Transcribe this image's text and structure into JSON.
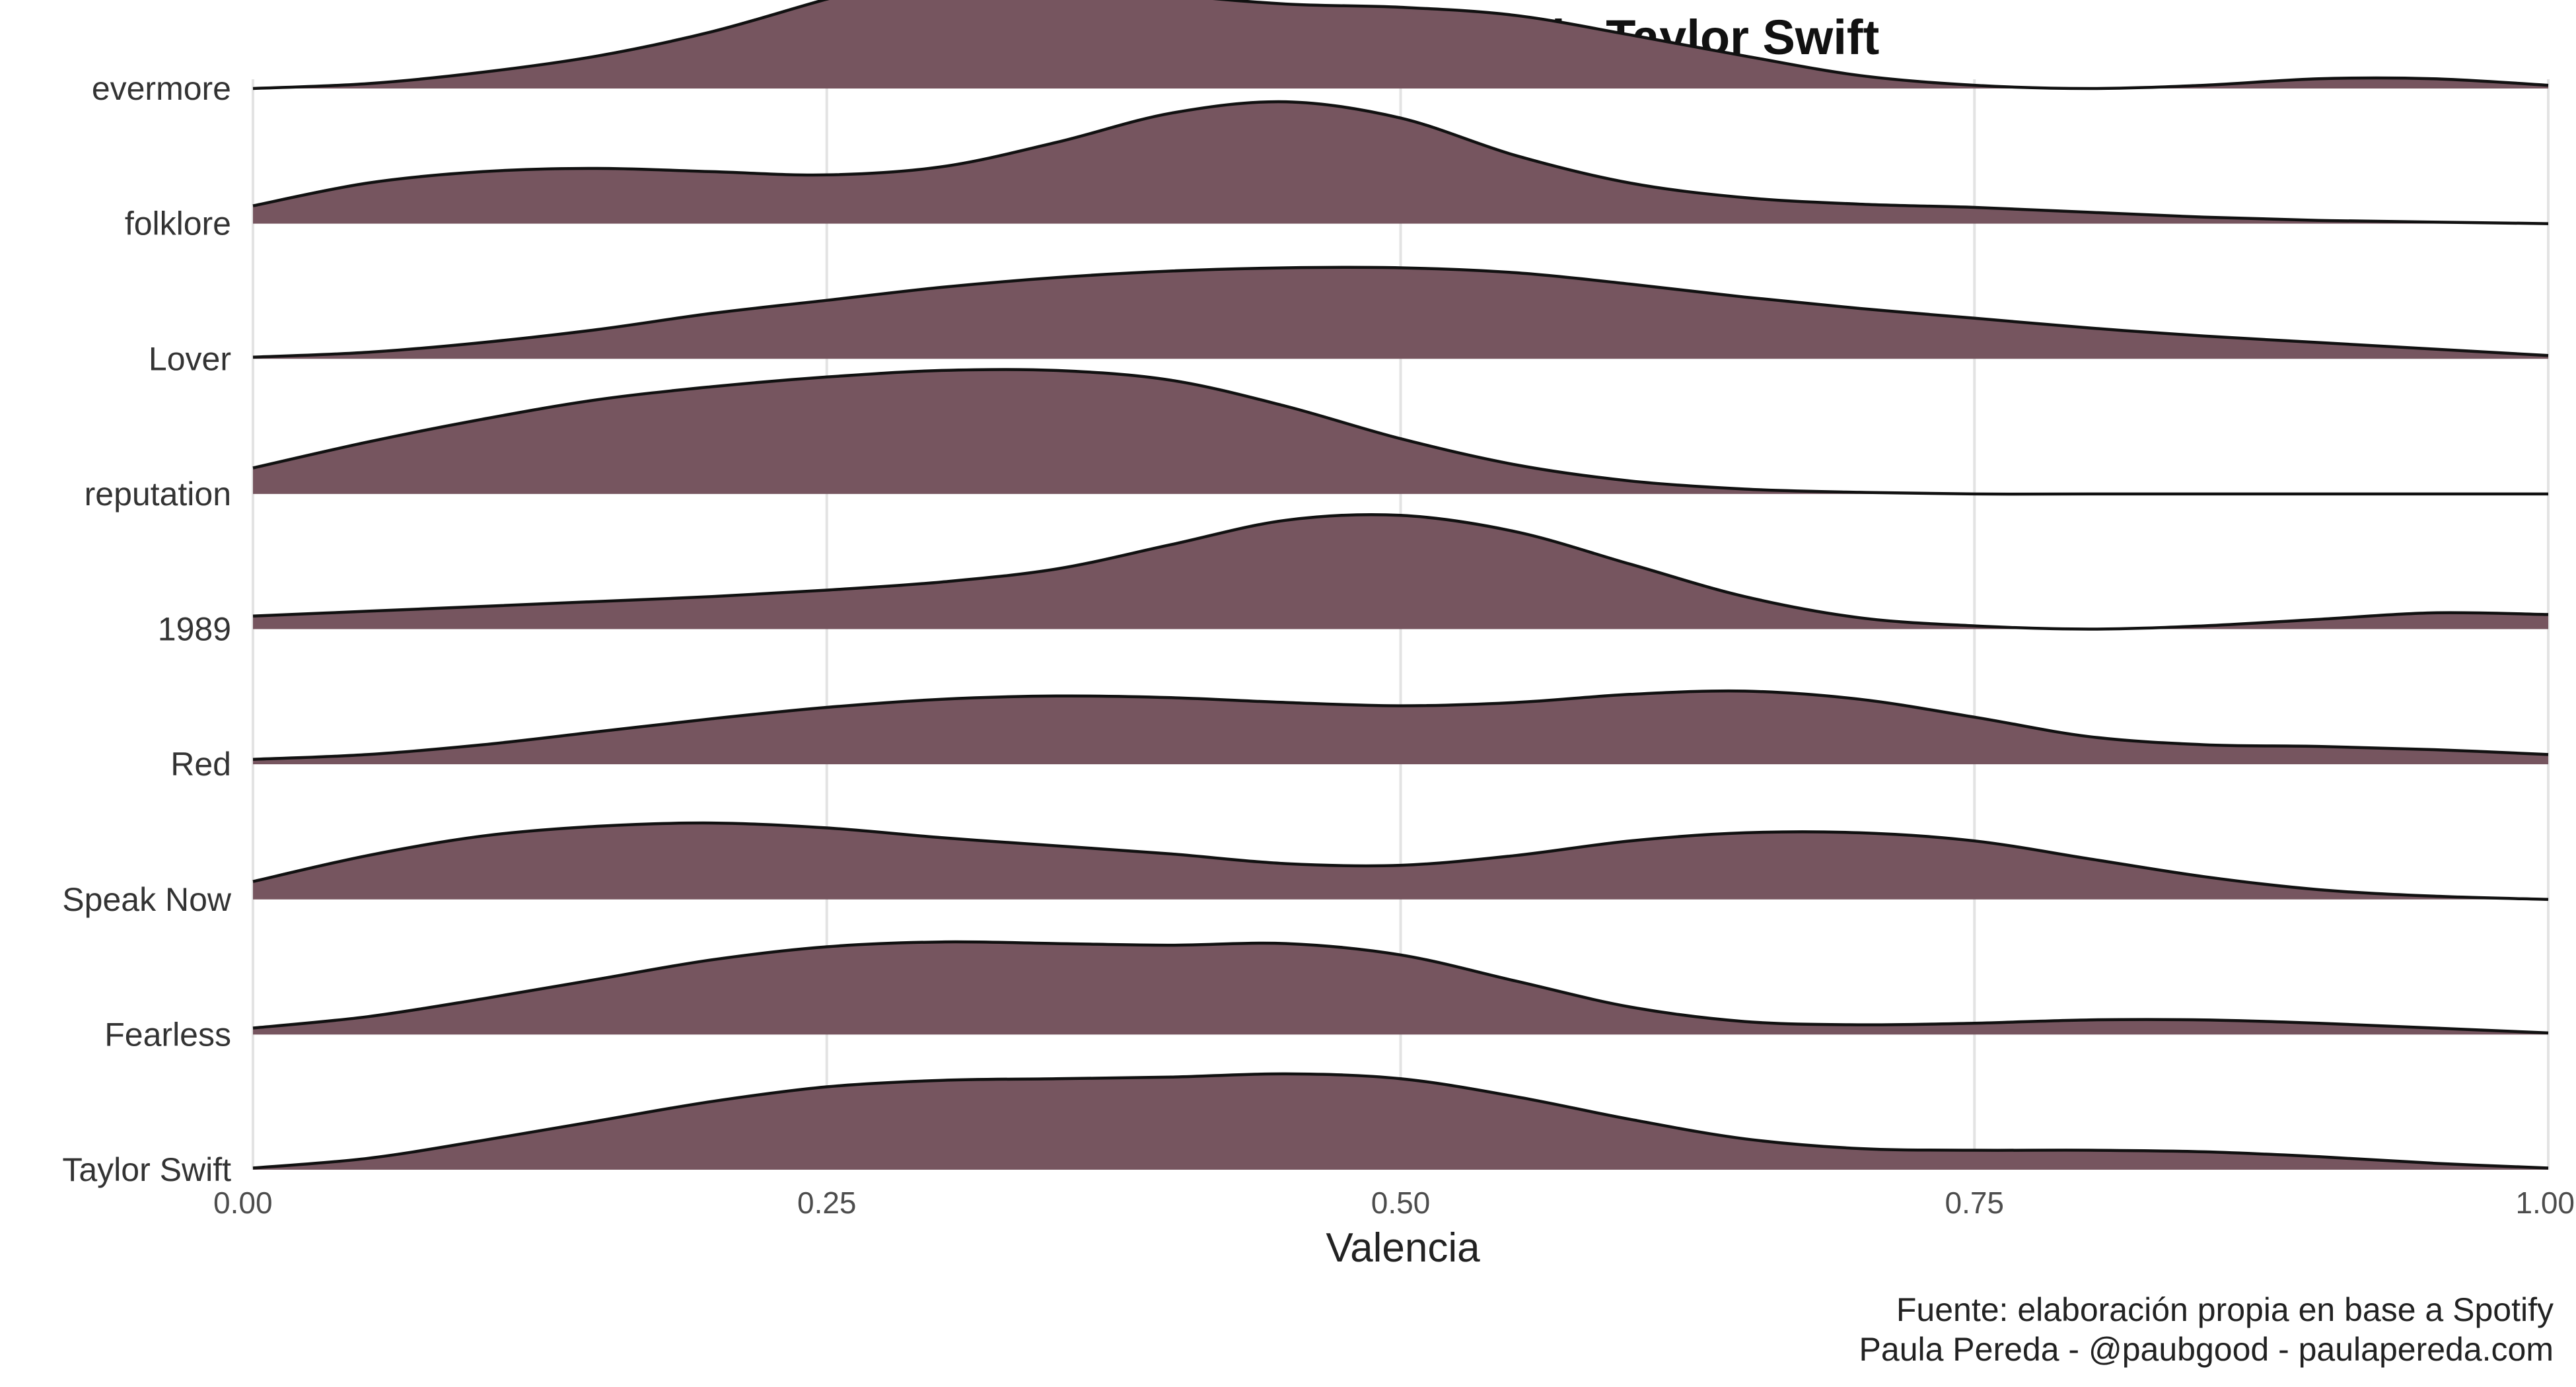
{
  "chart_data": {
    "type": "ridgeline",
    "title": "Valencia de las canciones de Taylor Swift",
    "xlabel": "Valencia",
    "ylabel": "",
    "xlim": [
      0,
      1
    ],
    "x_ticks": [
      0,
      0.25,
      0.5,
      0.75,
      1
    ],
    "x_tick_labels": [
      "0.00",
      "0.25",
      "0.50",
      "0.75",
      "1.00"
    ],
    "grid": "vertical",
    "fill_color": "#76555f",
    "line_color": "#111111",
    "caption": [
      "Fuente: elaboración propia en base a Spotify",
      "Paula Pereda - @paubgood - paulapereda.com"
    ],
    "series": [
      {
        "name": "evermore",
        "points": [
          [
            0,
            0.0
          ],
          [
            0.05,
            0.03
          ],
          [
            0.1,
            0.1
          ],
          [
            0.15,
            0.2
          ],
          [
            0.2,
            0.35
          ],
          [
            0.25,
            0.55
          ],
          [
            0.28,
            0.65
          ],
          [
            0.32,
            0.68
          ],
          [
            0.36,
            0.66
          ],
          [
            0.4,
            0.58
          ],
          [
            0.45,
            0.52
          ],
          [
            0.5,
            0.5
          ],
          [
            0.55,
            0.45
          ],
          [
            0.6,
            0.33
          ],
          [
            0.65,
            0.2
          ],
          [
            0.7,
            0.08
          ],
          [
            0.75,
            0.02
          ],
          [
            0.8,
            0.0
          ],
          [
            0.85,
            0.02
          ],
          [
            0.9,
            0.06
          ],
          [
            0.95,
            0.06
          ],
          [
            1,
            0.02
          ]
        ]
      },
      {
        "name": "folklore",
        "points": [
          [
            0,
            0.11
          ],
          [
            0.05,
            0.25
          ],
          [
            0.1,
            0.32
          ],
          [
            0.15,
            0.34
          ],
          [
            0.2,
            0.32
          ],
          [
            0.25,
            0.3
          ],
          [
            0.3,
            0.35
          ],
          [
            0.35,
            0.5
          ],
          [
            0.4,
            0.68
          ],
          [
            0.45,
            0.75
          ],
          [
            0.5,
            0.65
          ],
          [
            0.55,
            0.42
          ],
          [
            0.6,
            0.25
          ],
          [
            0.65,
            0.16
          ],
          [
            0.7,
            0.12
          ],
          [
            0.75,
            0.1
          ],
          [
            0.8,
            0.07
          ],
          [
            0.85,
            0.04
          ],
          [
            0.9,
            0.02
          ],
          [
            0.95,
            0.01
          ],
          [
            1,
            0.0
          ]
        ]
      },
      {
        "name": "Lover",
        "points": [
          [
            0,
            0.01
          ],
          [
            0.05,
            0.04
          ],
          [
            0.1,
            0.1
          ],
          [
            0.15,
            0.18
          ],
          [
            0.2,
            0.28
          ],
          [
            0.25,
            0.36
          ],
          [
            0.3,
            0.44
          ],
          [
            0.35,
            0.5
          ],
          [
            0.4,
            0.54
          ],
          [
            0.45,
            0.56
          ],
          [
            0.5,
            0.56
          ],
          [
            0.55,
            0.53
          ],
          [
            0.6,
            0.46
          ],
          [
            0.65,
            0.38
          ],
          [
            0.7,
            0.31
          ],
          [
            0.75,
            0.25
          ],
          [
            0.8,
            0.19
          ],
          [
            0.85,
            0.14
          ],
          [
            0.9,
            0.1
          ],
          [
            0.95,
            0.06
          ],
          [
            1,
            0.02
          ]
        ]
      },
      {
        "name": "reputation",
        "points": [
          [
            0,
            0.16
          ],
          [
            0.05,
            0.32
          ],
          [
            0.1,
            0.46
          ],
          [
            0.15,
            0.58
          ],
          [
            0.2,
            0.66
          ],
          [
            0.25,
            0.72
          ],
          [
            0.3,
            0.76
          ],
          [
            0.35,
            0.76
          ],
          [
            0.4,
            0.7
          ],
          [
            0.45,
            0.54
          ],
          [
            0.5,
            0.34
          ],
          [
            0.55,
            0.18
          ],
          [
            0.6,
            0.08
          ],
          [
            0.65,
            0.03
          ],
          [
            0.7,
            0.01
          ],
          [
            0.75,
            0.0
          ],
          [
            0.8,
            0.0
          ],
          [
            0.9,
            0.0
          ],
          [
            1,
            0.0
          ]
        ]
      },
      {
        "name": "1989",
        "points": [
          [
            0,
            0.08
          ],
          [
            0.05,
            0.11
          ],
          [
            0.1,
            0.14
          ],
          [
            0.15,
            0.17
          ],
          [
            0.2,
            0.2
          ],
          [
            0.25,
            0.24
          ],
          [
            0.3,
            0.29
          ],
          [
            0.35,
            0.37
          ],
          [
            0.4,
            0.52
          ],
          [
            0.45,
            0.67
          ],
          [
            0.5,
            0.7
          ],
          [
            0.55,
            0.6
          ],
          [
            0.6,
            0.4
          ],
          [
            0.65,
            0.2
          ],
          [
            0.7,
            0.07
          ],
          [
            0.75,
            0.02
          ],
          [
            0.8,
            0.0
          ],
          [
            0.85,
            0.02
          ],
          [
            0.9,
            0.06
          ],
          [
            0.95,
            0.1
          ],
          [
            1,
            0.09
          ]
        ]
      },
      {
        "name": "Red",
        "points": [
          [
            0,
            0.03
          ],
          [
            0.05,
            0.06
          ],
          [
            0.1,
            0.12
          ],
          [
            0.15,
            0.2
          ],
          [
            0.2,
            0.28
          ],
          [
            0.25,
            0.35
          ],
          [
            0.3,
            0.4
          ],
          [
            0.35,
            0.42
          ],
          [
            0.4,
            0.41
          ],
          [
            0.45,
            0.38
          ],
          [
            0.5,
            0.36
          ],
          [
            0.55,
            0.38
          ],
          [
            0.6,
            0.43
          ],
          [
            0.65,
            0.45
          ],
          [
            0.7,
            0.4
          ],
          [
            0.75,
            0.29
          ],
          [
            0.8,
            0.17
          ],
          [
            0.85,
            0.12
          ],
          [
            0.9,
            0.11
          ],
          [
            0.95,
            0.09
          ],
          [
            1,
            0.06
          ]
        ]
      },
      {
        "name": "Speak Now",
        "points": [
          [
            0,
            0.11
          ],
          [
            0.05,
            0.27
          ],
          [
            0.1,
            0.39
          ],
          [
            0.15,
            0.45
          ],
          [
            0.2,
            0.47
          ],
          [
            0.25,
            0.44
          ],
          [
            0.3,
            0.38
          ],
          [
            0.35,
            0.33
          ],
          [
            0.4,
            0.28
          ],
          [
            0.45,
            0.22
          ],
          [
            0.5,
            0.21
          ],
          [
            0.55,
            0.27
          ],
          [
            0.6,
            0.36
          ],
          [
            0.65,
            0.41
          ],
          [
            0.7,
            0.41
          ],
          [
            0.75,
            0.36
          ],
          [
            0.8,
            0.25
          ],
          [
            0.85,
            0.14
          ],
          [
            0.9,
            0.06
          ],
          [
            0.95,
            0.02
          ],
          [
            1,
            0.0
          ]
        ]
      },
      {
        "name": "Fearless",
        "points": [
          [
            0,
            0.04
          ],
          [
            0.05,
            0.11
          ],
          [
            0.1,
            0.22
          ],
          [
            0.15,
            0.34
          ],
          [
            0.2,
            0.46
          ],
          [
            0.25,
            0.54
          ],
          [
            0.3,
            0.57
          ],
          [
            0.35,
            0.56
          ],
          [
            0.4,
            0.55
          ],
          [
            0.45,
            0.56
          ],
          [
            0.5,
            0.49
          ],
          [
            0.55,
            0.33
          ],
          [
            0.6,
            0.17
          ],
          [
            0.65,
            0.08
          ],
          [
            0.7,
            0.06
          ],
          [
            0.75,
            0.07
          ],
          [
            0.8,
            0.09
          ],
          [
            0.85,
            0.09
          ],
          [
            0.9,
            0.07
          ],
          [
            0.95,
            0.04
          ],
          [
            1,
            0.01
          ]
        ]
      },
      {
        "name": "Taylor Swift",
        "points": [
          [
            0,
            0.01
          ],
          [
            0.05,
            0.07
          ],
          [
            0.1,
            0.18
          ],
          [
            0.15,
            0.3
          ],
          [
            0.2,
            0.42
          ],
          [
            0.25,
            0.51
          ],
          [
            0.3,
            0.55
          ],
          [
            0.35,
            0.56
          ],
          [
            0.4,
            0.57
          ],
          [
            0.45,
            0.59
          ],
          [
            0.5,
            0.56
          ],
          [
            0.55,
            0.45
          ],
          [
            0.6,
            0.31
          ],
          [
            0.65,
            0.19
          ],
          [
            0.7,
            0.13
          ],
          [
            0.75,
            0.12
          ],
          [
            0.8,
            0.12
          ],
          [
            0.85,
            0.11
          ],
          [
            0.9,
            0.08
          ],
          [
            0.95,
            0.04
          ],
          [
            1,
            0.01
          ]
        ]
      }
    ]
  }
}
